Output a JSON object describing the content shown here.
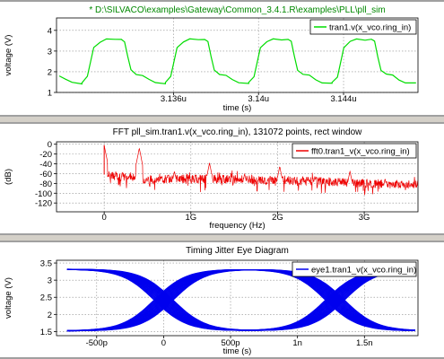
{
  "chart_data": [
    {
      "type": "line",
      "title": "* D:\\SILVACO\\examples\\Gateway\\Common_3.4.1.R\\examples\\PLL\\pll_sim",
      "title_color": "#008800",
      "xlabel": "time (s)",
      "ylabel": "voltage (V)",
      "xlim": [
        3.1305,
        3.1475
      ],
      "ylim": [
        1.0,
        4.6
      ],
      "x_unit": "u",
      "xticks": [
        3.136,
        3.14,
        3.144
      ],
      "xtick_labels": [
        "3.136u",
        "3.14u",
        "3.144u"
      ],
      "yticks": [
        1,
        2,
        3,
        4
      ],
      "ytick_labels": [
        "1",
        "2",
        "3",
        "4"
      ],
      "grid": true,
      "legend_position": "top-right",
      "series": [
        {
          "name": "tran1.v(x_vco.ring_in)",
          "color": "#00dd00",
          "period": 3.92,
          "x_start": 3.1305,
          "x_end": 3.1475,
          "cycle_x": [
            0.0,
            0.25,
            0.55,
            0.85,
            1.15,
            1.55,
            1.85,
            2.0,
            2.15,
            2.3,
            2.55,
            2.85,
            3.15,
            3.45,
            3.92
          ],
          "cycle_y": [
            1.45,
            1.75,
            3.2,
            3.45,
            3.55,
            3.55,
            3.6,
            3.45,
            2.7,
            2.1,
            1.9,
            1.8,
            1.6,
            1.5,
            1.45
          ],
          "phase": 3.1317
        }
      ]
    },
    {
      "type": "line",
      "title": "FFT pll_sim.tran1.v(x_vco.ring_in), 131072 points, rect window",
      "xlabel": "frequency (Hz)",
      "ylabel": "(dB)",
      "xlim": [
        -0.55,
        3.62
      ],
      "ylim": [
        -138,
        5
      ],
      "xticks": [
        0,
        1,
        2,
        3
      ],
      "xtick_labels": [
        "0",
        "1G",
        "2G",
        "3G"
      ],
      "yticks": [
        0,
        -20,
        -40,
        -60,
        -80,
        -100,
        -120
      ],
      "ytick_labels": [
        "0",
        "-20",
        "-40",
        "-60",
        "-80",
        "-100",
        "-120"
      ],
      "grid": true,
      "legend_position": "top-right",
      "series": [
        {
          "name": "fft0.tran1_v(x_vco.ring_in)",
          "color": "#ee0000",
          "fundamental": 0.405,
          "peaks": [
            [
              0.0,
              -2
            ],
            [
              0.405,
              -8
            ],
            [
              0.81,
              -55
            ],
            [
              1.215,
              -38
            ],
            [
              1.62,
              -60
            ],
            [
              2.025,
              -45
            ],
            [
              2.43,
              -65
            ],
            [
              2.835,
              -55
            ],
            [
              3.24,
              -70
            ]
          ],
          "floor_points": [
            [
              0.0,
              -62
            ],
            [
              0.5,
              -72
            ],
            [
              1.0,
              -70
            ],
            [
              1.5,
              -72
            ],
            [
              2.0,
              -74
            ],
            [
              2.5,
              -76
            ],
            [
              3.0,
              -80
            ],
            [
              3.6,
              -82
            ]
          ],
          "noise_spread": 9
        }
      ]
    },
    {
      "type": "line",
      "title": "Timing Jitter Eye Diagram",
      "xlabel": "time (s)",
      "ylabel": "voltage (V)",
      "xlim": [
        -0.8,
        1.9
      ],
      "ylim": [
        1.38,
        3.58
      ],
      "x_unit": "n",
      "xticks": [
        -0.5,
        0.0,
        0.5,
        1.0,
        1.5
      ],
      "xtick_labels": [
        "-500p",
        "0",
        "500p",
        "1n",
        "1.5n"
      ],
      "yticks": [
        1.5,
        2.0,
        2.5,
        3.0,
        3.5
      ],
      "ytick_labels": [
        "1.5",
        "2",
        "2.5",
        "3",
        "3.5"
      ],
      "grid": true,
      "legend_position": "top-right",
      "series": [
        {
          "name": "eye1.tran1_v(x_vco.ring_in)",
          "color": "#0000ee",
          "high": 3.32,
          "low": 1.52,
          "crossings": [
            {
              "center": 0.0,
              "falling_start": -0.35,
              "falling_end": 0.35,
              "rising_start": -0.15,
              "rising_end": 0.15
            },
            {
              "center": 1.28,
              "falling_start": 0.98,
              "falling_end": 1.62,
              "rising_start": 1.12,
              "rising_end": 1.45
            }
          ],
          "jitter_width": 0.14
        }
      ]
    }
  ]
}
